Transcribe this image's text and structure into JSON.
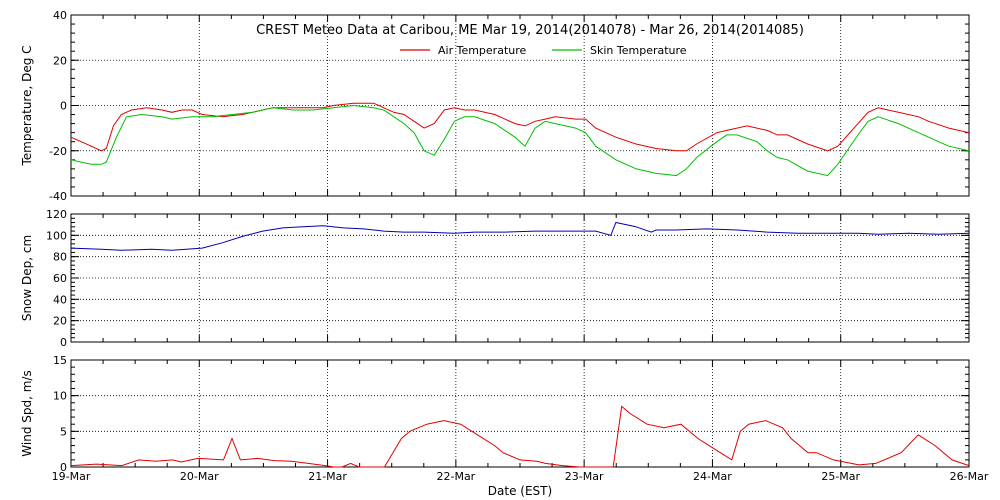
{
  "title": "CREST Meteo Data at Caribou, ME   Mar 19, 2014(2014078) - Mar 26, 2014(2014085)",
  "xlabel": "Date (EST)",
  "colors": {
    "air": "#e00000",
    "skin": "#00c000",
    "snow": "#0000b0",
    "wind": "#e00000",
    "grid": "#000000"
  },
  "chart_data": [
    {
      "type": "line",
      "ylabel": "Temperature, Deg C",
      "ylim": [
        -40,
        40
      ],
      "yticks": [
        "40",
        "20",
        "0",
        "-20",
        "-40"
      ],
      "legend": "top-center",
      "x_units": "days since Mar 19 00:00 EST",
      "series": [
        {
          "name": "Air Temperature",
          "color": "#e00000",
          "points": [
            [
              0,
              -14
            ],
            [
              0.1,
              -16
            ],
            [
              0.2,
              -18
            ],
            [
              0.3,
              -20
            ],
            [
              0.35,
              -19
            ],
            [
              0.42,
              -9
            ],
            [
              0.5,
              -4
            ],
            [
              0.6,
              -2
            ],
            [
              0.75,
              -1
            ],
            [
              0.9,
              -2
            ],
            [
              1.0,
              -3
            ],
            [
              1.1,
              -2
            ],
            [
              1.2,
              -2
            ],
            [
              1.3,
              -4
            ],
            [
              1.5,
              -5
            ],
            [
              1.7,
              -4
            ],
            [
              1.9,
              -2
            ],
            [
              2.0,
              -1
            ],
            [
              2.1,
              -1
            ],
            [
              2.3,
              -1
            ],
            [
              2.5,
              -1
            ],
            [
              2.6,
              0
            ],
            [
              2.8,
              1
            ],
            [
              3.0,
              1
            ],
            [
              3.1,
              -1
            ],
            [
              3.2,
              -3
            ],
            [
              3.3,
              -4
            ],
            [
              3.4,
              -7
            ],
            [
              3.5,
              -10
            ],
            [
              3.6,
              -8
            ],
            [
              3.7,
              -2
            ],
            [
              3.8,
              -1
            ],
            [
              3.9,
              -2
            ],
            [
              4.0,
              -2
            ],
            [
              4.2,
              -4
            ],
            [
              4.3,
              -6
            ],
            [
              4.4,
              -8
            ],
            [
              4.5,
              -9
            ],
            [
              4.6,
              -7
            ],
            [
              4.7,
              -6
            ],
            [
              4.8,
              -5
            ],
            [
              5.0,
              -6
            ],
            [
              5.1,
              -6
            ],
            [
              5.2,
              -10
            ],
            [
              5.4,
              -14
            ],
            [
              5.6,
              -17
            ],
            [
              5.8,
              -19
            ],
            [
              6.0,
              -20
            ],
            [
              6.1,
              -20
            ],
            [
              6.2,
              -17
            ],
            [
              6.4,
              -12
            ],
            [
              6.5,
              -11
            ],
            [
              6.7,
              -9
            ],
            [
              6.9,
              -11
            ],
            [
              7.0,
              -13
            ],
            [
              7.1,
              -13
            ],
            [
              7.3,
              -17
            ],
            [
              7.5,
              -20
            ],
            [
              7.6,
              -18
            ],
            [
              7.8,
              -8
            ],
            [
              7.9,
              -3
            ],
            [
              8.0,
              -1
            ],
            [
              8.2,
              -3
            ],
            [
              8.4,
              -5
            ],
            [
              8.5,
              -7
            ],
            [
              8.7,
              -10
            ],
            [
              8.9,
              -12
            ]
          ]
        },
        {
          "name": "Skin Temperature",
          "color": "#00c000",
          "points": [
            [
              0,
              -24
            ],
            [
              0.1,
              -25
            ],
            [
              0.2,
              -26
            ],
            [
              0.3,
              -26
            ],
            [
              0.35,
              -25
            ],
            [
              0.45,
              -14
            ],
            [
              0.55,
              -5
            ],
            [
              0.7,
              -4
            ],
            [
              0.9,
              -5
            ],
            [
              1.0,
              -6
            ],
            [
              1.2,
              -5
            ],
            [
              1.4,
              -5
            ],
            [
              1.6,
              -4
            ],
            [
              1.8,
              -3
            ],
            [
              2.0,
              -1
            ],
            [
              2.2,
              -2
            ],
            [
              2.4,
              -2
            ],
            [
              2.6,
              -1
            ],
            [
              2.8,
              0
            ],
            [
              3.0,
              -1
            ],
            [
              3.1,
              -2
            ],
            [
              3.2,
              -5
            ],
            [
              3.3,
              -8
            ],
            [
              3.4,
              -12
            ],
            [
              3.5,
              -20
            ],
            [
              3.6,
              -22
            ],
            [
              3.7,
              -15
            ],
            [
              3.8,
              -7
            ],
            [
              3.9,
              -5
            ],
            [
              4.0,
              -5
            ],
            [
              4.2,
              -8
            ],
            [
              4.3,
              -11
            ],
            [
              4.4,
              -14
            ],
            [
              4.5,
              -18
            ],
            [
              4.6,
              -10
            ],
            [
              4.7,
              -7
            ],
            [
              4.8,
              -8
            ],
            [
              5.0,
              -10
            ],
            [
              5.1,
              -12
            ],
            [
              5.2,
              -18
            ],
            [
              5.4,
              -24
            ],
            [
              5.6,
              -28
            ],
            [
              5.8,
              -30
            ],
            [
              6.0,
              -31
            ],
            [
              6.1,
              -28
            ],
            [
              6.2,
              -23
            ],
            [
              6.4,
              -16
            ],
            [
              6.5,
              -13
            ],
            [
              6.6,
              -13
            ],
            [
              6.8,
              -16
            ],
            [
              6.9,
              -20
            ],
            [
              7.0,
              -23
            ],
            [
              7.1,
              -24
            ],
            [
              7.3,
              -29
            ],
            [
              7.5,
              -31
            ],
            [
              7.6,
              -26
            ],
            [
              7.8,
              -13
            ],
            [
              7.9,
              -7
            ],
            [
              8.0,
              -5
            ],
            [
              8.2,
              -8
            ],
            [
              8.4,
              -12
            ],
            [
              8.5,
              -14
            ],
            [
              8.7,
              -18
            ],
            [
              8.9,
              -20
            ]
          ]
        }
      ]
    },
    {
      "type": "line",
      "ylabel": "Snow Dep, cm",
      "ylim": [
        0,
        120
      ],
      "yticks": [
        "120",
        "100",
        "80",
        "60",
        "40",
        "20",
        "0"
      ],
      "x_units": "days since Mar 19 00:00 EST",
      "series": [
        {
          "name": "Snow Depth",
          "color": "#0000b0",
          "points": [
            [
              0,
              88
            ],
            [
              0.3,
              87
            ],
            [
              0.5,
              86
            ],
            [
              0.8,
              87
            ],
            [
              1.0,
              86
            ],
            [
              1.3,
              88
            ],
            [
              1.5,
              93
            ],
            [
              1.7,
              99
            ],
            [
              1.9,
              104
            ],
            [
              2.1,
              107
            ],
            [
              2.3,
              108
            ],
            [
              2.5,
              109
            ],
            [
              2.7,
              107
            ],
            [
              2.9,
              106
            ],
            [
              3.1,
              104
            ],
            [
              3.3,
              103
            ],
            [
              3.5,
              103
            ],
            [
              3.8,
              102
            ],
            [
              4.0,
              103
            ],
            [
              4.3,
              103
            ],
            [
              4.6,
              104
            ],
            [
              4.9,
              104
            ],
            [
              5.2,
              104
            ],
            [
              5.35,
              100
            ],
            [
              5.4,
              112
            ],
            [
              5.6,
              108
            ],
            [
              5.75,
              103
            ],
            [
              5.8,
              105
            ],
            [
              6.0,
              105
            ],
            [
              6.3,
              106
            ],
            [
              6.6,
              105
            ],
            [
              6.9,
              103
            ],
            [
              7.2,
              102
            ],
            [
              7.5,
              102
            ],
            [
              7.8,
              102
            ],
            [
              8.0,
              101
            ],
            [
              8.3,
              102
            ],
            [
              8.6,
              101
            ],
            [
              8.9,
              102
            ]
          ]
        }
      ]
    },
    {
      "type": "line",
      "ylabel": "Wind Spd, m/s",
      "ylim": [
        0,
        15
      ],
      "yticks": [
        "15",
        "10",
        "5",
        "0"
      ],
      "x_units": "days since Mar 19 00:00 EST",
      "series": [
        {
          "name": "Wind Speed",
          "color": "#e00000",
          "points": [
            [
              0,
              0.2
            ],
            [
              0.3,
              0.4
            ],
            [
              0.6,
              0.2
            ],
            [
              0.8,
              1.0
            ],
            [
              1.0,
              0.8
            ],
            [
              1.2,
              1.0
            ],
            [
              1.3,
              0.7
            ],
            [
              1.5,
              1.2
            ],
            [
              1.8,
              1.0
            ],
            [
              1.9,
              4.0
            ],
            [
              2.0,
              1.0
            ],
            [
              2.2,
              1.2
            ],
            [
              2.4,
              0.9
            ],
            [
              2.6,
              0.8
            ],
            [
              2.8,
              0.5
            ],
            [
              3.0,
              0.2
            ],
            [
              3.1,
              0.0
            ],
            [
              3.2,
              0.0
            ],
            [
              3.3,
              0.5
            ],
            [
              3.4,
              0.0
            ],
            [
              3.7,
              0.0
            ],
            [
              3.8,
              2.0
            ],
            [
              3.9,
              4.0
            ],
            [
              4.0,
              5.0
            ],
            [
              4.2,
              6.0
            ],
            [
              4.4,
              6.5
            ],
            [
              4.6,
              6.0
            ],
            [
              4.8,
              4.5
            ],
            [
              5.0,
              3.0
            ],
            [
              5.1,
              2.0
            ],
            [
              5.3,
              1.0
            ],
            [
              5.5,
              0.8
            ],
            [
              5.6,
              0.5
            ],
            [
              5.8,
              0.2
            ],
            [
              6.0,
              0.0
            ],
            [
              6.2,
              0.0
            ],
            [
              6.4,
              0.0
            ],
            [
              6.5,
              8.5
            ],
            [
              6.6,
              7.5
            ],
            [
              6.8,
              6.0
            ],
            [
              7.0,
              5.5
            ],
            [
              7.2,
              6.0
            ],
            [
              7.4,
              4.0
            ],
            [
              7.6,
              2.5
            ],
            [
              7.8,
              1.0
            ],
            [
              7.9,
              5.0
            ],
            [
              8.0,
              6.0
            ],
            [
              8.2,
              6.5
            ],
            [
              8.4,
              5.5
            ],
            [
              8.5,
              4.0
            ],
            [
              8.7,
              2.0
            ],
            [
              8.8,
              2.0
            ],
            [
              9.0,
              1.0
            ],
            [
              9.3,
              0.3
            ],
            [
              9.5,
              0.5
            ],
            [
              9.8,
              2.0
            ],
            [
              10.0,
              4.5
            ],
            [
              10.2,
              3.0
            ],
            [
              10.4,
              1.0
            ],
            [
              10.6,
              0.2
            ]
          ]
        }
      ]
    }
  ],
  "xaxis": {
    "days": 7,
    "ticks": [
      "19-Mar",
      "20-Mar",
      "21-Mar",
      "22-Mar",
      "23-Mar",
      "24-Mar",
      "25-Mar",
      "26-Mar"
    ]
  }
}
